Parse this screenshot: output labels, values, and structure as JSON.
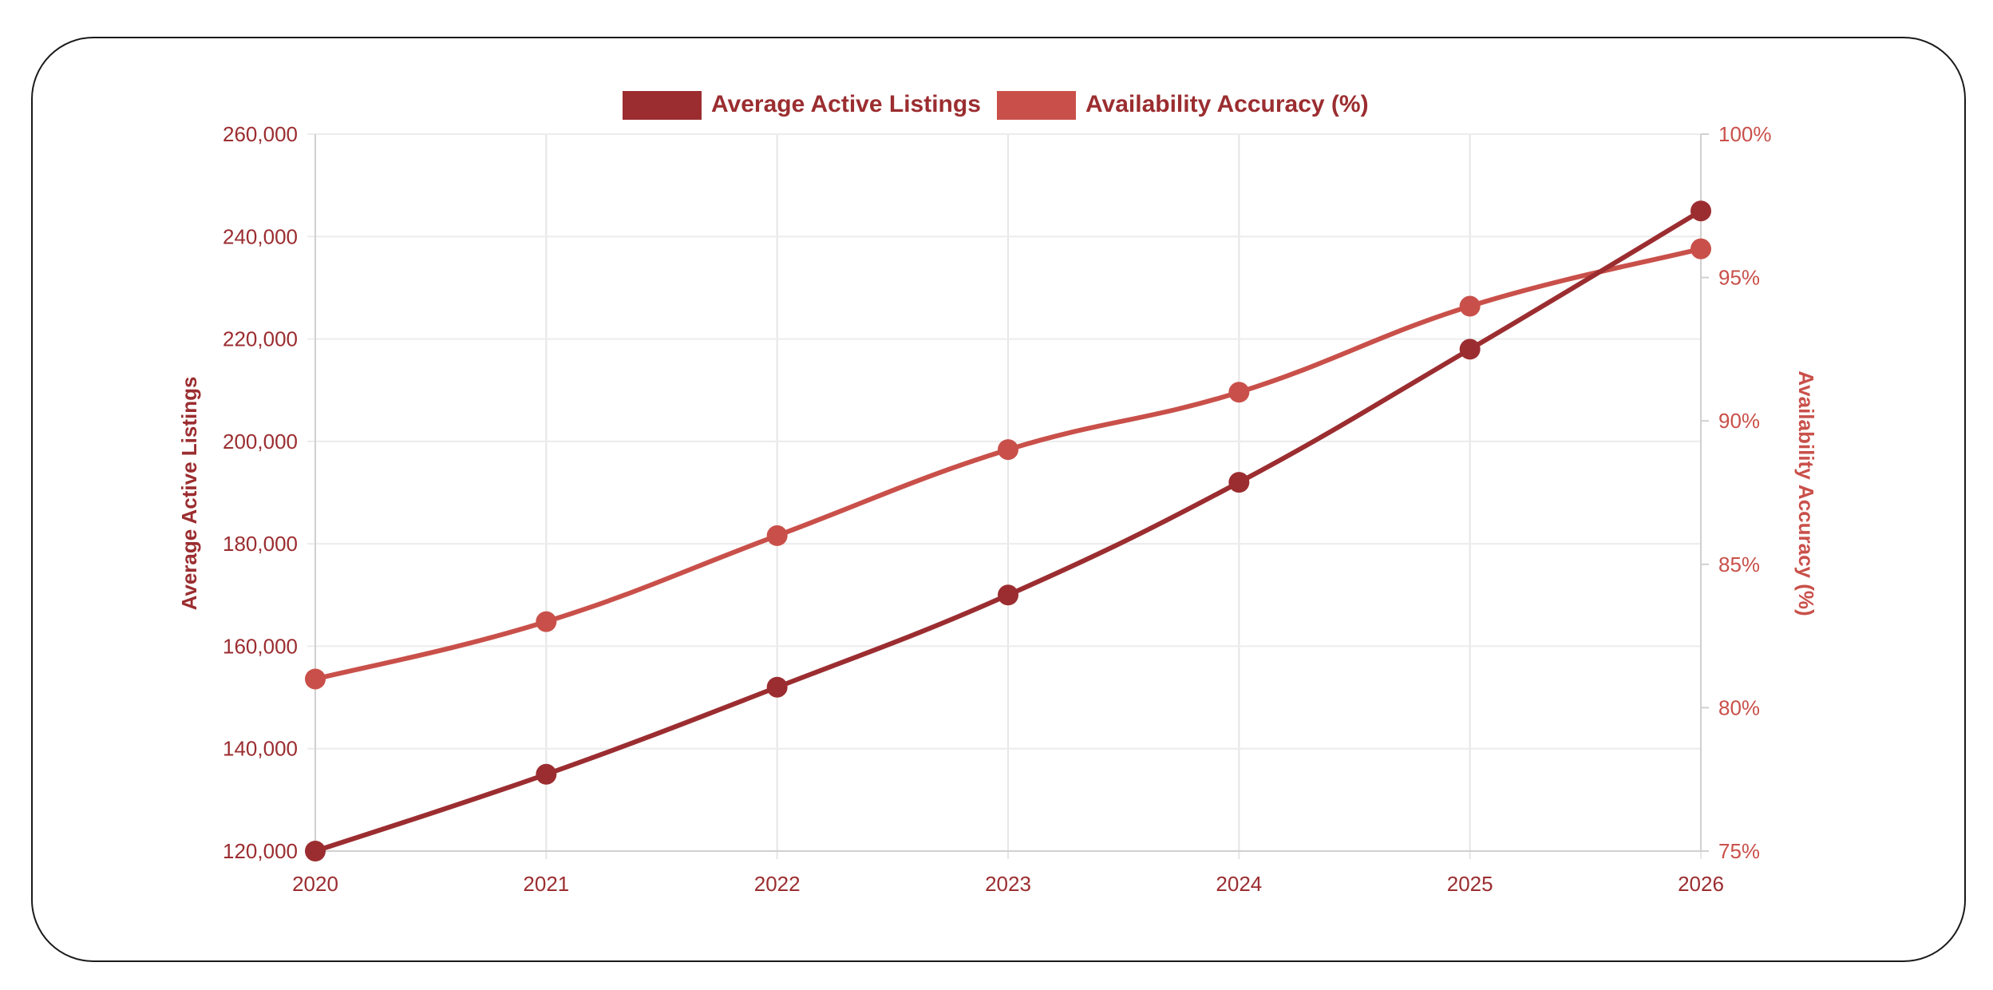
{
  "chart_data": {
    "type": "line",
    "x": [
      "2020",
      "2021",
      "2022",
      "2023",
      "2024",
      "2025",
      "2026"
    ],
    "series": [
      {
        "name": "Average Active Listings",
        "axis": "left",
        "color": "#9b2d30",
        "values": [
          120000,
          135000,
          152000,
          170000,
          192000,
          218000,
          245000
        ]
      },
      {
        "name": "Availability Accuracy (%)",
        "axis": "right",
        "color": "#c9504a",
        "values": [
          81,
          83,
          86,
          89,
          91,
          94,
          96
        ]
      }
    ],
    "y_left": {
      "label": "Average Active Listings",
      "range": [
        120000,
        260000
      ],
      "ticks": [
        "120,000",
        "140,000",
        "160,000",
        "180,000",
        "200,000",
        "220,000",
        "240,000",
        "260,000"
      ]
    },
    "y_right": {
      "label": "Availability Accuracy (%)",
      "range": [
        75,
        100
      ],
      "ticks": [
        "75%",
        "80%",
        "85%",
        "90%",
        "95%",
        "100%"
      ]
    },
    "grid": true,
    "legend_position": "top-center",
    "line_style": "smooth"
  }
}
